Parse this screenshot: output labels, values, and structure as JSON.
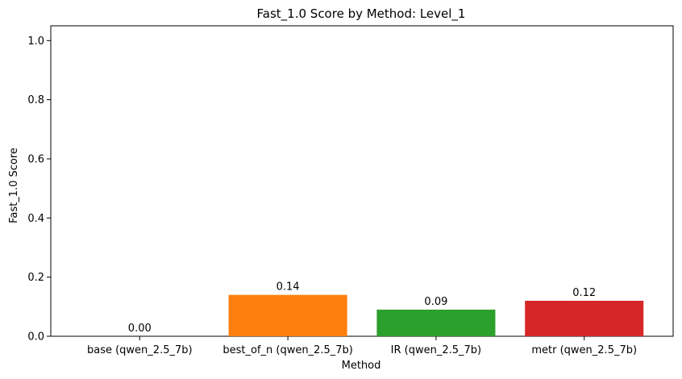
{
  "chart_data": {
    "type": "bar",
    "title": "Fast_1.0 Score by Method: Level_1",
    "xlabel": "Method",
    "ylabel": "Fast_1.0 Score",
    "categories": [
      "base (qwen_2.5_7b)",
      "best_of_n (qwen_2.5_7b)",
      "IR (qwen_2.5_7b)",
      "metr (qwen_2.5_7b)"
    ],
    "values": [
      0.0,
      0.14,
      0.09,
      0.12
    ],
    "value_labels": [
      "0.00",
      "0.14",
      "0.09",
      "0.12"
    ],
    "colors": [
      "#1f77b4",
      "#ff7f0e",
      "#2ca02c",
      "#d62728"
    ],
    "ylim": [
      0,
      1.05
    ],
    "yticks": [
      0.0,
      0.2,
      0.4,
      0.6,
      0.8,
      1.0
    ],
    "ytick_labels": [
      "0.0",
      "0.2",
      "0.4",
      "0.6",
      "0.8",
      "1.0"
    ],
    "grid": false,
    "legend": "none"
  }
}
